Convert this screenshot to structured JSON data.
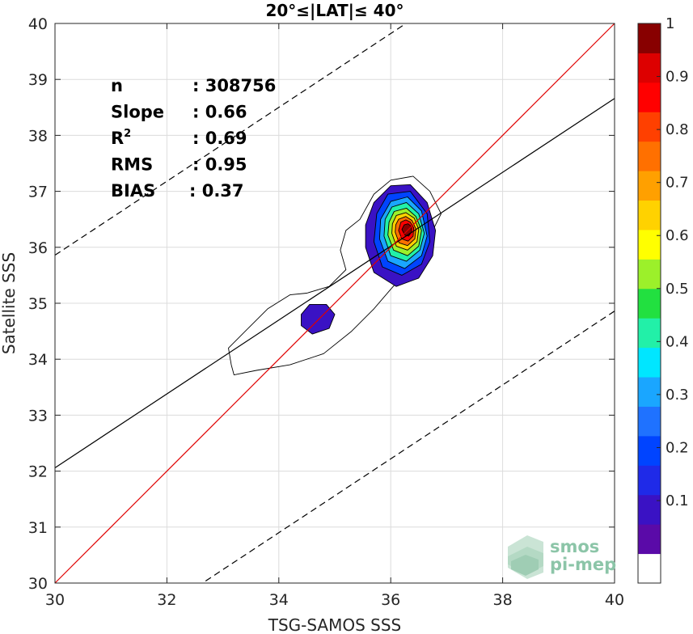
{
  "chart_data": {
    "type": "heatmap",
    "title": "20°≤|LAT|≤ 40°",
    "xlabel": "TSG-SAMOS SSS",
    "ylabel": "Satellite SSS",
    "xlim": [
      30,
      40
    ],
    "ylim": [
      30,
      40
    ],
    "x_ticks": [
      "30",
      "32",
      "34",
      "36",
      "38",
      "40"
    ],
    "y_ticks": [
      "30",
      "31",
      "32",
      "33",
      "34",
      "35",
      "36",
      "37",
      "38",
      "39",
      "40"
    ],
    "grid": true,
    "stats": [
      {
        "label": "n",
        "value": ": 308756"
      },
      {
        "label": "Slope",
        "value": ": 0.66"
      },
      {
        "label": "R",
        "sup": "2",
        "value": ": 0.69"
      },
      {
        "label": "RMS",
        "value": ": 0.95"
      },
      {
        "label": "BIAS",
        "value": ": 0.37"
      }
    ],
    "regression": {
      "slope": 0.66,
      "intercept": 12.26
    },
    "one_to_one_color": "#e00000",
    "dashed_offset": 3.8,
    "density_peak": [
      36.3,
      36.4
    ],
    "contour_levels": [
      {
        "level": 0.05,
        "points": [
          [
            33.2,
            33.72
          ],
          [
            33.6,
            33.8
          ],
          [
            34.2,
            33.9
          ],
          [
            34.8,
            34.1
          ],
          [
            35.3,
            34.5
          ],
          [
            35.7,
            34.9
          ],
          [
            36.0,
            35.25
          ],
          [
            36.4,
            35.7
          ],
          [
            36.7,
            36.2
          ],
          [
            36.9,
            36.6
          ],
          [
            36.7,
            37.0
          ],
          [
            36.4,
            37.27
          ],
          [
            36.0,
            37.2
          ],
          [
            35.7,
            36.95
          ],
          [
            35.45,
            36.5
          ],
          [
            35.2,
            36.3
          ],
          [
            35.1,
            35.95
          ],
          [
            35.2,
            35.6
          ],
          [
            34.9,
            35.3
          ],
          [
            34.5,
            35.18
          ],
          [
            34.2,
            35.15
          ],
          [
            33.8,
            34.9
          ],
          [
            33.4,
            34.5
          ],
          [
            33.1,
            34.2
          ],
          [
            33.15,
            33.9
          ]
        ]
      },
      {
        "level": 0.15,
        "points": [
          [
            34.4,
            34.6
          ],
          [
            34.6,
            34.45
          ],
          [
            34.9,
            34.55
          ],
          [
            35.0,
            34.8
          ],
          [
            34.85,
            34.98
          ],
          [
            34.55,
            34.98
          ],
          [
            34.4,
            34.8
          ]
        ]
      },
      {
        "level": 0.15,
        "points": [
          [
            35.55,
            36.0
          ],
          [
            35.7,
            35.55
          ],
          [
            36.1,
            35.3
          ],
          [
            36.5,
            35.45
          ],
          [
            36.75,
            35.85
          ],
          [
            36.8,
            36.3
          ],
          [
            36.65,
            36.8
          ],
          [
            36.35,
            37.12
          ],
          [
            36.0,
            37.1
          ],
          [
            35.7,
            36.8
          ],
          [
            35.55,
            36.4
          ]
        ]
      },
      {
        "level": 0.25,
        "points": [
          [
            35.7,
            36.1
          ],
          [
            35.85,
            35.65
          ],
          [
            36.2,
            35.5
          ],
          [
            36.55,
            35.7
          ],
          [
            36.7,
            36.1
          ],
          [
            36.65,
            36.6
          ],
          [
            36.35,
            37.0
          ],
          [
            35.95,
            36.95
          ],
          [
            35.75,
            36.6
          ]
        ]
      },
      {
        "level": 0.35,
        "points": [
          [
            35.8,
            36.15
          ],
          [
            35.95,
            35.75
          ],
          [
            36.25,
            35.62
          ],
          [
            36.55,
            35.85
          ],
          [
            36.65,
            36.2
          ],
          [
            36.55,
            36.65
          ],
          [
            36.3,
            36.9
          ],
          [
            36.0,
            36.82
          ],
          [
            35.82,
            36.5
          ]
        ]
      },
      {
        "level": 0.45,
        "points": [
          [
            35.88,
            36.2
          ],
          [
            36.0,
            35.85
          ],
          [
            36.28,
            35.75
          ],
          [
            36.52,
            35.95
          ],
          [
            36.6,
            36.25
          ],
          [
            36.5,
            36.6
          ],
          [
            36.28,
            36.8
          ],
          [
            36.02,
            36.72
          ],
          [
            35.9,
            36.5
          ]
        ]
      },
      {
        "level": 0.55,
        "points": [
          [
            35.95,
            36.22
          ],
          [
            36.05,
            35.95
          ],
          [
            36.3,
            35.85
          ],
          [
            36.5,
            36.02
          ],
          [
            36.55,
            36.3
          ],
          [
            36.45,
            36.55
          ],
          [
            36.28,
            36.7
          ],
          [
            36.06,
            36.64
          ],
          [
            35.97,
            36.45
          ]
        ]
      },
      {
        "level": 0.65,
        "points": [
          [
            36.02,
            36.25
          ],
          [
            36.1,
            36.02
          ],
          [
            36.3,
            35.95
          ],
          [
            36.47,
            36.1
          ],
          [
            36.5,
            36.32
          ],
          [
            36.42,
            36.52
          ],
          [
            36.27,
            36.62
          ],
          [
            36.1,
            36.57
          ],
          [
            36.03,
            36.42
          ]
        ]
      },
      {
        "level": 0.75,
        "points": [
          [
            36.08,
            36.27
          ],
          [
            36.15,
            36.08
          ],
          [
            36.3,
            36.03
          ],
          [
            36.43,
            36.15
          ],
          [
            36.45,
            36.33
          ],
          [
            36.38,
            36.48
          ],
          [
            36.27,
            36.55
          ],
          [
            36.14,
            36.5
          ],
          [
            36.09,
            36.4
          ]
        ]
      },
      {
        "level": 0.85,
        "points": [
          [
            36.14,
            36.3
          ],
          [
            36.2,
            36.15
          ],
          [
            36.31,
            36.11
          ],
          [
            36.4,
            36.2
          ],
          [
            36.41,
            36.35
          ],
          [
            36.35,
            36.45
          ],
          [
            36.27,
            36.49
          ],
          [
            36.18,
            36.45
          ]
        ]
      },
      {
        "level": 0.95,
        "points": [
          [
            36.2,
            36.32
          ],
          [
            36.25,
            36.22
          ],
          [
            36.32,
            36.2
          ],
          [
            36.37,
            36.27
          ],
          [
            36.37,
            36.37
          ],
          [
            36.31,
            36.42
          ],
          [
            36.24,
            36.4
          ]
        ]
      }
    ],
    "colorbar": {
      "ticks": [
        "0.1",
        "0.2",
        "0.3",
        "0.4",
        "0.5",
        "0.6",
        "0.7",
        "0.8",
        "0.9",
        "1"
      ],
      "colors": [
        "#ffffff",
        "#5a0aa8",
        "#3a12c4",
        "#1f2ae8",
        "#0044ff",
        "#1f72ff",
        "#1aa6ff",
        "#00e6ff",
        "#22f0a8",
        "#22e040",
        "#9cf02a",
        "#ffff00",
        "#ffd200",
        "#ffa000",
        "#ff7000",
        "#ff4000",
        "#ff0000",
        "#dd0000",
        "#880000"
      ]
    }
  },
  "logo": {
    "line1": "smos",
    "line2": "pi-mep"
  }
}
